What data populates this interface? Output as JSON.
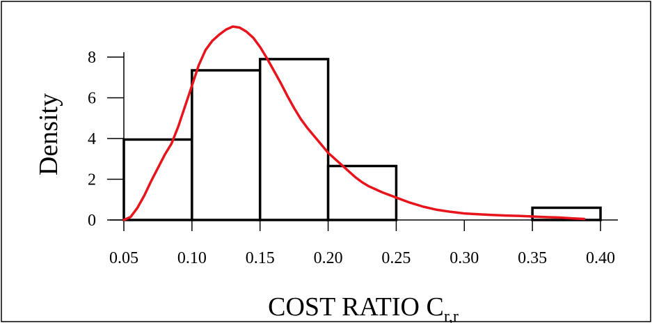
{
  "chart_data": {
    "type": "bar",
    "title": "",
    "xlabel": "COST RATIO C",
    "xlabel_subscript": "r,r",
    "ylabel": "Density",
    "xlim": [
      0.05,
      0.4
    ],
    "ylim": [
      0,
      8
    ],
    "x_ticks": [
      0.05,
      0.1,
      0.15,
      0.2,
      0.25,
      0.3,
      0.35,
      0.4
    ],
    "x_tick_labels": [
      "0.05",
      "0.10",
      "0.15",
      "0.20",
      "0.25",
      "0.30",
      "0.35",
      "0.40"
    ],
    "y_ticks": [
      0,
      2,
      4,
      6,
      8
    ],
    "y_tick_labels": [
      "0",
      "2",
      "4",
      "6",
      "8"
    ],
    "grid": false,
    "histogram": {
      "bins": [
        {
          "x0": 0.05,
          "x1": 0.1,
          "density": 3.95
        },
        {
          "x0": 0.1,
          "x1": 0.15,
          "density": 7.35
        },
        {
          "x0": 0.15,
          "x1": 0.2,
          "density": 7.9
        },
        {
          "x0": 0.2,
          "x1": 0.25,
          "density": 2.65
        },
        {
          "x0": 0.35,
          "x1": 0.4,
          "density": 0.6
        }
      ],
      "fill": "#ffffff",
      "stroke": "#000000"
    },
    "density_curve": {
      "color": "#e8141c",
      "points": [
        [
          0.05,
          0.0
        ],
        [
          0.055,
          0.15
        ],
        [
          0.06,
          0.6
        ],
        [
          0.065,
          1.2
        ],
        [
          0.07,
          1.9
        ],
        [
          0.075,
          2.55
        ],
        [
          0.08,
          3.2
        ],
        [
          0.085,
          3.75
        ],
        [
          0.09,
          4.6
        ],
        [
          0.095,
          5.6
        ],
        [
          0.1,
          6.6
        ],
        [
          0.105,
          7.6
        ],
        [
          0.11,
          8.35
        ],
        [
          0.115,
          8.8
        ],
        [
          0.12,
          9.1
        ],
        [
          0.125,
          9.35
        ],
        [
          0.13,
          9.5
        ],
        [
          0.135,
          9.45
        ],
        [
          0.14,
          9.25
        ],
        [
          0.145,
          8.95
        ],
        [
          0.15,
          8.5
        ],
        [
          0.155,
          7.95
        ],
        [
          0.16,
          7.35
        ],
        [
          0.165,
          6.75
        ],
        [
          0.17,
          6.1
        ],
        [
          0.175,
          5.5
        ],
        [
          0.18,
          4.95
        ],
        [
          0.185,
          4.5
        ],
        [
          0.19,
          4.1
        ],
        [
          0.195,
          3.7
        ],
        [
          0.2,
          3.3
        ],
        [
          0.205,
          3.0
        ],
        [
          0.21,
          2.7
        ],
        [
          0.215,
          2.4
        ],
        [
          0.22,
          2.1
        ],
        [
          0.225,
          1.85
        ],
        [
          0.23,
          1.65
        ],
        [
          0.235,
          1.5
        ],
        [
          0.24,
          1.35
        ],
        [
          0.25,
          1.1
        ],
        [
          0.26,
          0.85
        ],
        [
          0.27,
          0.65
        ],
        [
          0.28,
          0.5
        ],
        [
          0.29,
          0.4
        ],
        [
          0.3,
          0.32
        ],
        [
          0.31,
          0.28
        ],
        [
          0.32,
          0.25
        ],
        [
          0.33,
          0.22
        ],
        [
          0.34,
          0.2
        ],
        [
          0.35,
          0.17
        ],
        [
          0.36,
          0.14
        ],
        [
          0.37,
          0.12
        ],
        [
          0.38,
          0.08
        ],
        [
          0.388,
          0.05
        ]
      ]
    }
  }
}
